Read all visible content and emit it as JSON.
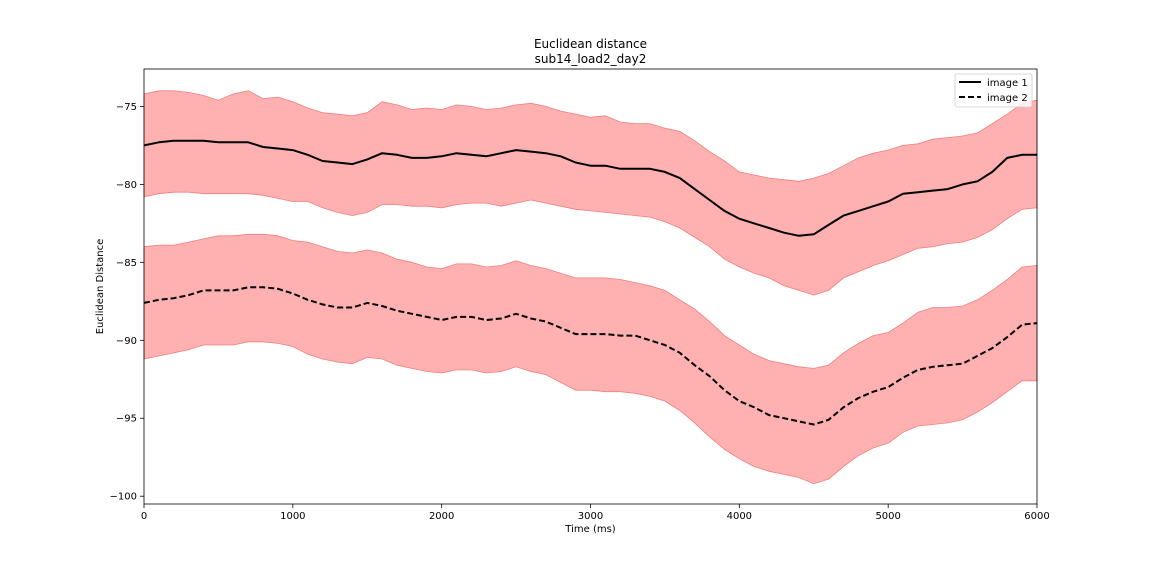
{
  "chart_data": {
    "type": "line",
    "title": "Euclidean distance",
    "subtitle": "sub14_load2_day2",
    "xlabel": "Time (ms)",
    "ylabel": "Euclidean Distance",
    "xlim": [
      0,
      6000
    ],
    "ylim": [
      -100.5,
      -72.6
    ],
    "xticks": [
      0,
      1000,
      2000,
      3000,
      4000,
      5000,
      6000
    ],
    "yticks": [
      -75,
      -80,
      -85,
      -90,
      -95,
      -100
    ],
    "grid": false,
    "legend_position": "top-right",
    "shade_color": "#ffb0b0",
    "shade_edge_color": "#f08080",
    "series": [
      {
        "name": "image 1",
        "style": "solid",
        "color": "#000000",
        "x": [
          0,
          100,
          200,
          300,
          400,
          500,
          600,
          700,
          800,
          900,
          1000,
          1100,
          1200,
          1300,
          1400,
          1500,
          1600,
          1700,
          1800,
          1900,
          2000,
          2100,
          2200,
          2300,
          2400,
          2500,
          2600,
          2700,
          2800,
          2900,
          3000,
          3100,
          3200,
          3300,
          3400,
          3500,
          3600,
          3700,
          3800,
          3900,
          4000,
          4100,
          4200,
          4300,
          4400,
          4500,
          4600,
          4700,
          4800,
          4900,
          5000,
          5100,
          5200,
          5300,
          5400,
          5500,
          5600,
          5700,
          5800,
          5900,
          6000
        ],
        "y": [
          -77.5,
          -77.3,
          -77.2,
          -77.2,
          -77.2,
          -77.3,
          -77.3,
          -77.3,
          -77.6,
          -77.7,
          -77.8,
          -78.1,
          -78.5,
          -78.6,
          -78.7,
          -78.4,
          -78.0,
          -78.1,
          -78.3,
          -78.3,
          -78.2,
          -78.0,
          -78.1,
          -78.2,
          -78.0,
          -77.8,
          -77.9,
          -78.0,
          -78.2,
          -78.6,
          -78.8,
          -78.8,
          -79.0,
          -79.0,
          -79.0,
          -79.2,
          -79.6,
          -80.3,
          -81.0,
          -81.7,
          -82.2,
          -82.5,
          -82.8,
          -83.1,
          -83.3,
          -83.2,
          -82.6,
          -82.0,
          -81.7,
          -81.4,
          -81.1,
          -80.6,
          -80.5,
          -80.4,
          -80.3,
          -80.0,
          -79.8,
          -79.2,
          -78.3,
          -78.1,
          -78.1
        ],
        "band_upper": [
          -74.2,
          -74.0,
          -74.0,
          -74.1,
          -74.3,
          -74.6,
          -74.2,
          -74.0,
          -74.5,
          -74.4,
          -74.7,
          -75.1,
          -75.4,
          -75.5,
          -75.6,
          -75.4,
          -74.7,
          -74.9,
          -75.2,
          -75.1,
          -75.2,
          -74.9,
          -75.0,
          -75.2,
          -75.1,
          -74.9,
          -74.8,
          -75.0,
          -75.3,
          -75.5,
          -75.7,
          -75.6,
          -76.0,
          -76.1,
          -76.1,
          -76.4,
          -76.6,
          -77.2,
          -77.9,
          -78.5,
          -79.2,
          -79.4,
          -79.6,
          -79.7,
          -79.8,
          -79.6,
          -79.3,
          -78.8,
          -78.3,
          -78.0,
          -77.8,
          -77.5,
          -77.4,
          -77.1,
          -77.0,
          -76.9,
          -76.7,
          -76.1,
          -75.5,
          -74.8,
          -74.6
        ],
        "band_lower": [
          -80.8,
          -80.6,
          -80.5,
          -80.5,
          -80.6,
          -80.6,
          -80.6,
          -80.6,
          -80.7,
          -80.9,
          -81.1,
          -81.1,
          -81.5,
          -81.8,
          -82.0,
          -81.8,
          -81.3,
          -81.3,
          -81.4,
          -81.4,
          -81.5,
          -81.3,
          -81.2,
          -81.2,
          -81.4,
          -81.2,
          -81.0,
          -81.2,
          -81.4,
          -81.6,
          -81.7,
          -81.8,
          -81.9,
          -82.0,
          -82.1,
          -82.4,
          -82.8,
          -83.4,
          -84.0,
          -84.8,
          -85.3,
          -85.7,
          -86.0,
          -86.5,
          -86.8,
          -87.1,
          -86.8,
          -86.0,
          -85.6,
          -85.2,
          -84.9,
          -84.5,
          -84.1,
          -84.0,
          -83.8,
          -83.7,
          -83.4,
          -82.9,
          -82.2,
          -81.6,
          -81.5
        ]
      },
      {
        "name": "image 2",
        "style": "dashed",
        "color": "#000000",
        "x": [
          0,
          100,
          200,
          300,
          400,
          500,
          600,
          700,
          800,
          900,
          1000,
          1100,
          1200,
          1300,
          1400,
          1500,
          1600,
          1700,
          1800,
          1900,
          2000,
          2100,
          2200,
          2300,
          2400,
          2500,
          2600,
          2700,
          2800,
          2900,
          3000,
          3100,
          3200,
          3300,
          3400,
          3500,
          3600,
          3700,
          3800,
          3900,
          4000,
          4100,
          4200,
          4300,
          4400,
          4500,
          4600,
          4700,
          4800,
          4900,
          5000,
          5100,
          5200,
          5300,
          5400,
          5500,
          5600,
          5700,
          5800,
          5900,
          6000
        ],
        "y": [
          -87.6,
          -87.4,
          -87.3,
          -87.1,
          -86.8,
          -86.8,
          -86.8,
          -86.6,
          -86.6,
          -86.7,
          -87.0,
          -87.4,
          -87.7,
          -87.9,
          -87.9,
          -87.6,
          -87.8,
          -88.1,
          -88.3,
          -88.5,
          -88.7,
          -88.5,
          -88.5,
          -88.7,
          -88.6,
          -88.3,
          -88.6,
          -88.8,
          -89.2,
          -89.6,
          -89.6,
          -89.6,
          -89.7,
          -89.7,
          -90.0,
          -90.3,
          -90.8,
          -91.6,
          -92.3,
          -93.2,
          -93.9,
          -94.3,
          -94.8,
          -95.0,
          -95.2,
          -95.4,
          -95.1,
          -94.3,
          -93.7,
          -93.3,
          -93.0,
          -92.4,
          -91.9,
          -91.7,
          -91.6,
          -91.5,
          -91.0,
          -90.5,
          -89.8,
          -89.0,
          -88.9
        ],
        "band_upper": [
          -84.0,
          -83.9,
          -83.9,
          -83.7,
          -83.5,
          -83.3,
          -83.3,
          -83.2,
          -83.2,
          -83.3,
          -83.6,
          -83.7,
          -84.0,
          -84.3,
          -84.4,
          -84.2,
          -84.4,
          -84.8,
          -85.0,
          -85.3,
          -85.4,
          -85.1,
          -85.1,
          -85.3,
          -85.2,
          -84.9,
          -85.2,
          -85.4,
          -85.7,
          -86.0,
          -86.0,
          -86.0,
          -86.1,
          -86.3,
          -86.5,
          -86.8,
          -87.4,
          -88.0,
          -88.8,
          -89.7,
          -90.3,
          -90.9,
          -91.3,
          -91.5,
          -91.7,
          -91.8,
          -91.6,
          -90.8,
          -90.2,
          -89.7,
          -89.5,
          -88.9,
          -88.2,
          -87.9,
          -87.9,
          -87.8,
          -87.4,
          -86.8,
          -86.1,
          -85.3,
          -85.2
        ],
        "band_lower": [
          -91.2,
          -91.0,
          -90.8,
          -90.6,
          -90.3,
          -90.3,
          -90.3,
          -90.1,
          -90.1,
          -90.2,
          -90.4,
          -90.9,
          -91.2,
          -91.4,
          -91.5,
          -91.1,
          -91.2,
          -91.6,
          -91.8,
          -92.0,
          -92.1,
          -91.9,
          -91.9,
          -92.1,
          -92.0,
          -91.7,
          -92.0,
          -92.2,
          -92.7,
          -93.2,
          -93.2,
          -93.3,
          -93.3,
          -93.4,
          -93.6,
          -93.9,
          -94.5,
          -95.3,
          -96.2,
          -97.0,
          -97.6,
          -98.1,
          -98.4,
          -98.6,
          -98.8,
          -99.2,
          -98.9,
          -98.1,
          -97.4,
          -96.9,
          -96.6,
          -95.9,
          -95.5,
          -95.4,
          -95.3,
          -95.1,
          -94.6,
          -94.0,
          -93.3,
          -92.6,
          -92.6
        ]
      }
    ]
  }
}
